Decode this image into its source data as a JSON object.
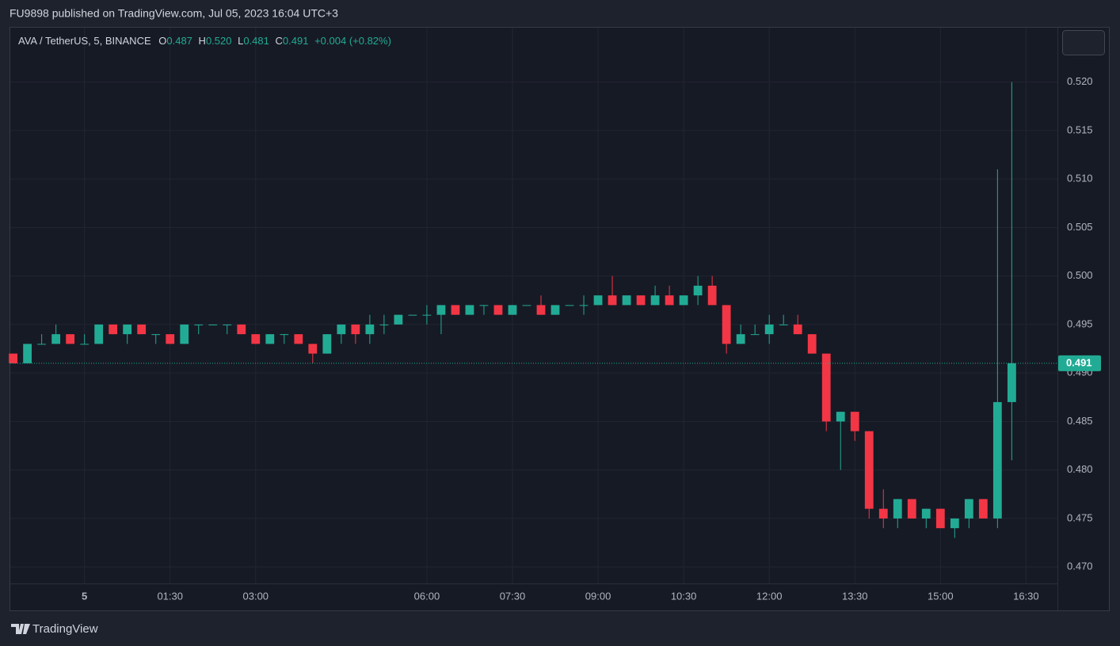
{
  "header": {
    "published": "FU9898 published on TradingView.com, Jul 05, 2023 16:04 UTC+3",
    "brand": "TradingView"
  },
  "chart_data": {
    "type": "candlestick",
    "symbol": "AVA / TetherUS, 5, BINANCE",
    "legend": {
      "o_label": "O",
      "o": "0.487",
      "h_label": "H",
      "h": "0.520",
      "l_label": "L",
      "l": "0.481",
      "c_label": "C",
      "c": "0.491",
      "change": "+0.004 (+0.82%)"
    },
    "up_color": "#22ab94",
    "down_color": "#f23645",
    "last_price": 0.491,
    "xlim": [
      -78,
      1023
    ],
    "ylim": [
      0.4683,
      0.5256
    ],
    "xticks": [
      {
        "value": 0,
        "label": "5"
      },
      {
        "value": 90,
        "label": "01:30"
      },
      {
        "value": 180,
        "label": "03:00"
      },
      {
        "value": 360,
        "label": "06:00"
      },
      {
        "value": 450,
        "label": "07:30"
      },
      {
        "value": 540,
        "label": "09:00"
      },
      {
        "value": 630,
        "label": "10:30"
      },
      {
        "value": 720,
        "label": "12:00"
      },
      {
        "value": 810,
        "label": "13:30"
      },
      {
        "value": 900,
        "label": "15:00"
      },
      {
        "value": 990,
        "label": "16:30"
      }
    ],
    "yticks": [
      {
        "value": 0.47,
        "label": "0.470"
      },
      0.475,
      {
        "value": 0.48,
        "label": "0.480"
      },
      0.485,
      {
        "value": 0.49,
        "label": "0.490"
      },
      0.495,
      {
        "value": 0.5,
        "label": "0.500"
      },
      0.505,
      {
        "value": 0.51,
        "label": "0.510"
      },
      0.515,
      {
        "value": 0.52,
        "label": "0.520"
      }
    ],
    "grid": true,
    "x": [
      -75,
      -60,
      -45,
      -30,
      -15,
      0,
      15,
      30,
      45,
      60,
      75,
      90,
      105,
      120,
      135,
      150,
      165,
      180,
      195,
      210,
      225,
      240,
      255,
      270,
      285,
      300,
      315,
      330,
      345,
      360,
      375,
      390,
      405,
      420,
      435,
      450,
      465,
      480,
      495,
      510,
      525,
      540,
      555,
      570,
      585,
      600,
      615,
      630,
      645,
      660,
      675,
      690,
      705,
      720,
      735,
      750,
      765,
      780,
      795,
      810,
      825,
      840,
      855,
      870,
      885,
      900,
      915,
      930,
      945,
      960,
      975
    ],
    "open": [
      0.492,
      0.491,
      0.493,
      0.493,
      0.494,
      0.493,
      0.493,
      0.495,
      0.494,
      0.495,
      0.494,
      0.494,
      0.493,
      0.495,
      0.495,
      0.495,
      0.495,
      0.494,
      0.493,
      0.494,
      0.494,
      0.493,
      0.492,
      0.494,
      0.495,
      0.494,
      0.495,
      0.495,
      0.496,
      0.496,
      0.496,
      0.497,
      0.496,
      0.497,
      0.497,
      0.496,
      0.497,
      0.497,
      0.496,
      0.497,
      0.497,
      0.497,
      0.498,
      0.497,
      0.498,
      0.497,
      0.498,
      0.497,
      0.498,
      0.499,
      0.497,
      0.493,
      0.494,
      0.494,
      0.495,
      0.495,
      0.494,
      0.492,
      0.485,
      0.486,
      0.484,
      0.476,
      0.475,
      0.477,
      0.475,
      0.476,
      0.474,
      0.475,
      0.477,
      0.475,
      0.487
    ],
    "high": [
      0.492,
      0.493,
      0.494,
      0.495,
      0.494,
      0.494,
      0.495,
      0.495,
      0.495,
      0.495,
      0.494,
      0.494,
      0.495,
      0.495,
      0.495,
      0.495,
      0.495,
      0.494,
      0.494,
      0.494,
      0.494,
      0.493,
      0.494,
      0.495,
      0.495,
      0.496,
      0.496,
      0.496,
      0.496,
      0.497,
      0.497,
      0.497,
      0.497,
      0.497,
      0.497,
      0.497,
      0.497,
      0.498,
      0.497,
      0.497,
      0.498,
      0.498,
      0.5,
      0.498,
      0.498,
      0.499,
      0.499,
      0.498,
      0.5,
      0.5,
      0.497,
      0.495,
      0.495,
      0.496,
      0.496,
      0.496,
      0.494,
      0.492,
      0.486,
      0.486,
      0.484,
      0.478,
      0.477,
      0.477,
      0.476,
      0.476,
      0.475,
      0.477,
      0.477,
      0.511,
      0.52
    ],
    "low": [
      0.491,
      0.491,
      0.493,
      0.493,
      0.493,
      0.493,
      0.493,
      0.494,
      0.493,
      0.494,
      0.493,
      0.493,
      0.493,
      0.494,
      0.495,
      0.494,
      0.494,
      0.493,
      0.493,
      0.493,
      0.493,
      0.491,
      0.492,
      0.493,
      0.493,
      0.493,
      0.494,
      0.495,
      0.496,
      0.495,
      0.494,
      0.496,
      0.496,
      0.496,
      0.496,
      0.496,
      0.497,
      0.496,
      0.496,
      0.497,
      0.496,
      0.497,
      0.497,
      0.497,
      0.497,
      0.497,
      0.497,
      0.497,
      0.497,
      0.497,
      0.492,
      0.493,
      0.494,
      0.493,
      0.495,
      0.494,
      0.492,
      0.484,
      0.48,
      0.483,
      0.475,
      0.474,
      0.474,
      0.475,
      0.474,
      0.474,
      0.473,
      0.474,
      0.475,
      0.474,
      0.481
    ],
    "close": [
      0.491,
      0.493,
      0.493,
      0.494,
      0.493,
      0.493,
      0.495,
      0.494,
      0.495,
      0.494,
      0.494,
      0.493,
      0.495,
      0.495,
      0.495,
      0.495,
      0.494,
      0.493,
      0.494,
      0.494,
      0.493,
      0.492,
      0.494,
      0.495,
      0.494,
      0.495,
      0.495,
      0.496,
      0.496,
      0.496,
      0.497,
      0.496,
      0.497,
      0.497,
      0.496,
      0.497,
      0.497,
      0.496,
      0.497,
      0.497,
      0.497,
      0.498,
      0.497,
      0.498,
      0.497,
      0.498,
      0.497,
      0.498,
      0.499,
      0.497,
      0.493,
      0.494,
      0.494,
      0.495,
      0.495,
      0.494,
      0.492,
      0.485,
      0.486,
      0.484,
      0.476,
      0.475,
      0.477,
      0.475,
      0.476,
      0.474,
      0.475,
      0.477,
      0.475,
      0.487,
      0.491
    ]
  }
}
